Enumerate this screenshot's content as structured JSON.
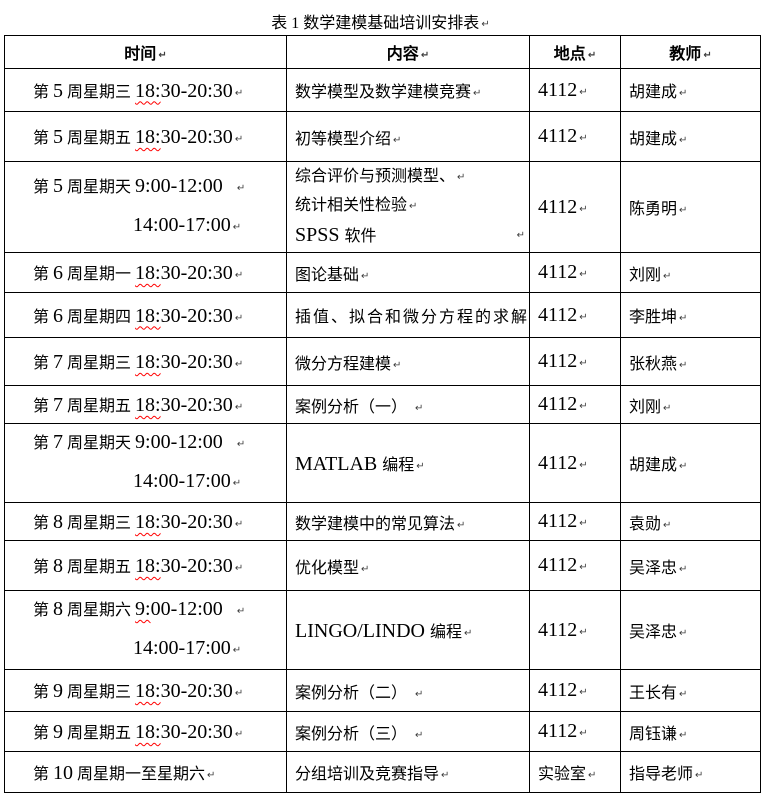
{
  "title": "表 1  数学建模基础培训安排表",
  "marks": {
    "paragraph_mark": "↵"
  },
  "colors": {
    "text": "#000000",
    "border": "#000000",
    "squiggle": "#ff0000",
    "format_mark": "#3d3d3d",
    "background": "#ffffff"
  },
  "table": {
    "headers": [
      "时间",
      "内容",
      "地点",
      "教师"
    ],
    "rows": [
      {
        "time": [
          {
            "t": "第 "
          },
          {
            "t": "5",
            "k": "n"
          },
          {
            "t": " 周星期三 "
          },
          {
            "t": "18:",
            "k": "ns"
          },
          {
            "t": "30-20:30",
            "k": "n"
          }
        ],
        "content": {
          "lines": [
            {
              "seg": [
                {
                  "t": "数学模型及数学建模竞赛"
                }
              ]
            }
          ]
        },
        "location": [
          {
            "t": "4112",
            "k": "n"
          }
        ],
        "teacher": "胡建成"
      },
      {
        "time": [
          {
            "t": "第 "
          },
          {
            "t": "5",
            "k": "n"
          },
          {
            "t": " 周星期五 "
          },
          {
            "t": "18:",
            "k": "ns"
          },
          {
            "t": "30-20:30",
            "k": "n"
          }
        ],
        "content": {
          "lines": [
            {
              "seg": [
                {
                  "t": "初等模型介绍"
                }
              ]
            }
          ]
        },
        "location": [
          {
            "t": "4112",
            "k": "n"
          }
        ],
        "teacher": "胡建成"
      },
      {
        "time": [
          {
            "t": "第 "
          },
          {
            "t": "5",
            "k": "n"
          },
          {
            "t": " 周星期天 "
          },
          {
            "t": "9:00-12:00",
            "k": "n"
          }
        ],
        "tsp": true,
        "time2": [
          {
            "t": "14:00-17:00",
            "k": "n"
          }
        ],
        "content": {
          "lines": [
            {
              "seg": [
                {
                  "t": "综合评价与预测模型、"
                }
              ]
            },
            {
              "seg": [
                {
                  "t": "统计相关性检验"
                }
              ]
            },
            {
              "seg": [
                {
                  "t": "SPSS ",
                  "k": "n"
                },
                {
                  "t": "软件"
                }
              ],
              "tabEnd": true
            }
          ]
        },
        "location": [
          {
            "t": "4112",
            "k": "n"
          }
        ],
        "teacher": "陈勇明"
      },
      {
        "time": [
          {
            "t": "第 "
          },
          {
            "t": "6",
            "k": "n"
          },
          {
            "t": " 周星期一 "
          },
          {
            "t": "18:",
            "k": "ns"
          },
          {
            "t": "30-20:30",
            "k": "n"
          }
        ],
        "content": {
          "lines": [
            {
              "seg": [
                {
                  "t": "图论基础"
                }
              ]
            }
          ]
        },
        "location": [
          {
            "t": "4112",
            "k": "n"
          }
        ],
        "teacher": "刘刚"
      },
      {
        "time": [
          {
            "t": "第 "
          },
          {
            "t": "6",
            "k": "n"
          },
          {
            "t": " 周星期四 "
          },
          {
            "t": "18:",
            "k": "ns"
          },
          {
            "t": "30-20:30",
            "k": "n"
          }
        ],
        "content": {
          "lines": [
            {
              "seg": [
                {
                  "t": "插值、拟合和微分方程的求解"
                }
              ],
              "spread": true
            }
          ]
        },
        "location": [
          {
            "t": "4112",
            "k": "n"
          }
        ],
        "teacher": "李胜坤"
      },
      {
        "time": [
          {
            "t": "第 "
          },
          {
            "t": "7",
            "k": "n"
          },
          {
            "t": " 周星期三 "
          },
          {
            "t": "18:",
            "k": "ns"
          },
          {
            "t": "30-20:30",
            "k": "n"
          }
        ],
        "content": {
          "lines": [
            {
              "seg": [
                {
                  "t": "微分方程建模"
                }
              ]
            }
          ]
        },
        "location": [
          {
            "t": "4112",
            "k": "n"
          }
        ],
        "teacher": "张秋燕"
      },
      {
        "time": [
          {
            "t": "第 "
          },
          {
            "t": "7",
            "k": "n"
          },
          {
            "t": " 周星期五 "
          },
          {
            "t": "18:",
            "k": "ns"
          },
          {
            "t": "30-20:30",
            "k": "n"
          }
        ],
        "content": {
          "lines": [
            {
              "seg": [
                {
                  "t": "案例分析（一）"
                }
              ],
              "sp": true
            }
          ]
        },
        "location": [
          {
            "t": "4112",
            "k": "n"
          }
        ],
        "teacher": "刘刚"
      },
      {
        "time": [
          {
            "t": "第 "
          },
          {
            "t": "7",
            "k": "n"
          },
          {
            "t": " 周星期天 "
          },
          {
            "t": "9:00-12:00",
            "k": "n"
          }
        ],
        "tsp": true,
        "time2": [
          {
            "t": "14:00-17:00",
            "k": "n"
          }
        ],
        "content": {
          "lines": [
            {
              "seg": [
                {
                  "t": "MATLAB ",
                  "k": "n"
                },
                {
                  "t": "编程"
                }
              ]
            }
          ]
        },
        "location": [
          {
            "t": "4112",
            "k": "n"
          }
        ],
        "teacher": "胡建成"
      },
      {
        "time": [
          {
            "t": "第 "
          },
          {
            "t": "8",
            "k": "n"
          },
          {
            "t": " 周星期三 "
          },
          {
            "t": "18:",
            "k": "ns"
          },
          {
            "t": "30-20:30",
            "k": "n"
          }
        ],
        "content": {
          "lines": [
            {
              "seg": [
                {
                  "t": "数学建模中的常见算法"
                }
              ]
            }
          ]
        },
        "location": [
          {
            "t": "4112",
            "k": "n"
          }
        ],
        "teacher": "袁勋"
      },
      {
        "time": [
          {
            "t": "第 "
          },
          {
            "t": "8",
            "k": "n"
          },
          {
            "t": " 周星期五 "
          },
          {
            "t": "18:",
            "k": "ns"
          },
          {
            "t": "30-20:30",
            "k": "n"
          }
        ],
        "content": {
          "lines": [
            {
              "seg": [
                {
                  "t": "优化模型"
                }
              ]
            }
          ]
        },
        "location": [
          {
            "t": "4112",
            "k": "n"
          }
        ],
        "teacher": "吴泽忠"
      },
      {
        "time": [
          {
            "t": "第 "
          },
          {
            "t": "8",
            "k": "n"
          },
          {
            "t": " 周星期六 "
          },
          {
            "t": "9:",
            "k": "ns"
          },
          {
            "t": "00-12:00",
            "k": "n"
          }
        ],
        "tsp": true,
        "time2": [
          {
            "t": "14:00-17:00",
            "k": "n"
          }
        ],
        "content": {
          "lines": [
            {
              "seg": [
                {
                  "t": "LINGO/LINDO ",
                  "k": "n"
                },
                {
                  "t": "编程"
                }
              ]
            }
          ]
        },
        "location": [
          {
            "t": "4112",
            "k": "n"
          }
        ],
        "teacher": "吴泽忠"
      },
      {
        "time": [
          {
            "t": "第 "
          },
          {
            "t": "9",
            "k": "n"
          },
          {
            "t": " 周星期三 "
          },
          {
            "t": "18:",
            "k": "ns"
          },
          {
            "t": "30-20:30",
            "k": "n"
          }
        ],
        "content": {
          "lines": [
            {
              "seg": [
                {
                  "t": "案例分析（二）"
                }
              ],
              "sp": true
            }
          ]
        },
        "location": [
          {
            "t": "4112",
            "k": "n"
          }
        ],
        "teacher": "王长有"
      },
      {
        "time": [
          {
            "t": "第 "
          },
          {
            "t": "9",
            "k": "n"
          },
          {
            "t": " 周星期五 "
          },
          {
            "t": "18:",
            "k": "ns"
          },
          {
            "t": "30-20:30",
            "k": "n"
          }
        ],
        "content": {
          "lines": [
            {
              "seg": [
                {
                  "t": "案例分析（三）"
                }
              ],
              "sp": true
            }
          ]
        },
        "location": [
          {
            "t": "4112",
            "k": "n"
          }
        ],
        "teacher": "周钰谦"
      },
      {
        "time": [
          {
            "t": "第 "
          },
          {
            "t": "10",
            "k": "n"
          },
          {
            "t": " 周星期一至星期六"
          }
        ],
        "content": {
          "lines": [
            {
              "seg": [
                {
                  "t": "分组培训及竞赛指导"
                }
              ]
            }
          ]
        },
        "location": [
          {
            "t": "实验室"
          }
        ],
        "teacher": "指导老师"
      }
    ]
  }
}
